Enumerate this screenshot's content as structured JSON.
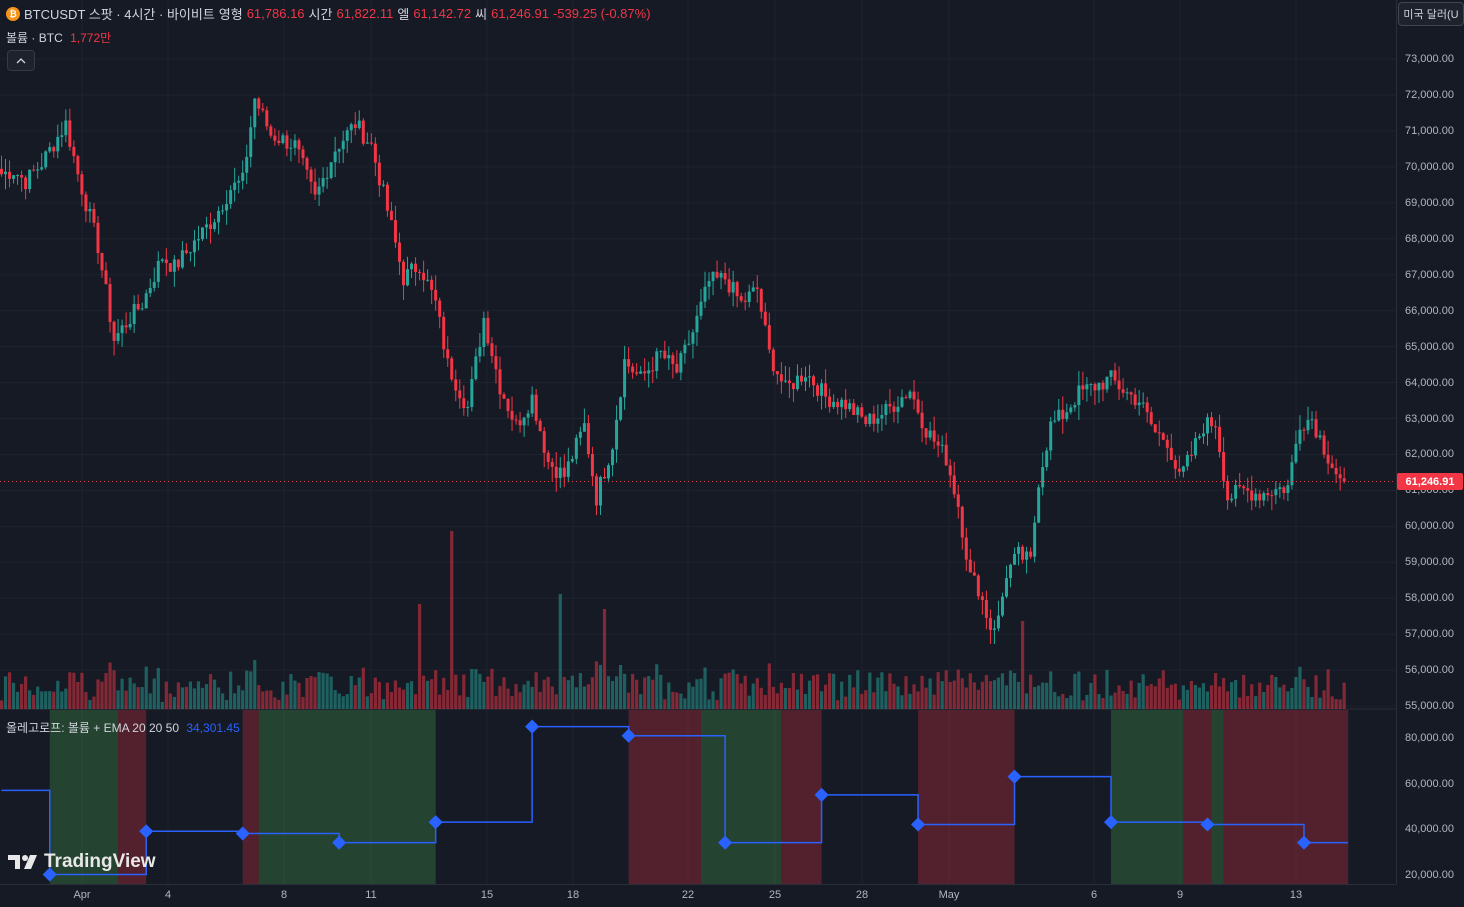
{
  "legend": {
    "symbol": "BTCUSDT 스팟 · 4시간 · 바이비트",
    "open_label": "영형",
    "open": "61,786.16",
    "high_label": "시간",
    "high": "61,822.11",
    "low_label": "엘",
    "low": "61,142.72",
    "close_label": "씨",
    "close": "61,246.91",
    "change": "-539.25 (-0.87%)"
  },
  "volume_legend": {
    "label": "볼륨 · BTC",
    "value": "1,772만"
  },
  "collapse_icon": "chevron-up-icon",
  "indicator_legend": {
    "label": "올레고로프: 볼륨 + EMA 20 20 50",
    "value": "34,301.45"
  },
  "currency_button": "미국 달러(U",
  "last_price": "61,246.91",
  "watermark": "TradingView",
  "colors": {
    "up": "#26a69a",
    "down": "#f23645",
    "line": "#2962ff",
    "bg": "#161a25"
  },
  "chart_data": {
    "type": "candlestick",
    "price_axis": [
      "73,000.00",
      "72,000.00",
      "71,000.00",
      "70,000.00",
      "69,000.00",
      "68,000.00",
      "67,000.00",
      "66,000.00",
      "65,000.00",
      "64,000.00",
      "63,000.00",
      "62,000.00",
      "61,000.00",
      "60,000.00",
      "59,000.00",
      "58,000.00",
      "57,000.00",
      "56,000.00",
      "55,000.00"
    ],
    "indicator_axis": [
      "80,000.00",
      "60,000.00",
      "40,000.00",
      "20,000.00"
    ],
    "time_axis": [
      "Apr",
      "4",
      "8",
      "11",
      "15",
      "18",
      "22",
      "25",
      "28",
      "May",
      "6",
      "9",
      "13"
    ],
    "ohlc_keypoints": [
      [
        0,
        69800
      ],
      [
        3,
        69900
      ],
      [
        6,
        69600
      ],
      [
        10,
        70100
      ],
      [
        16,
        71200
      ],
      [
        19,
        69800
      ],
      [
        24,
        67800
      ],
      [
        28,
        65200
      ],
      [
        32,
        65800
      ],
      [
        35,
        66200
      ],
      [
        40,
        67500
      ],
      [
        43,
        67200
      ],
      [
        48,
        67900
      ],
      [
        53,
        68600
      ],
      [
        57,
        69400
      ],
      [
        60,
        69600
      ],
      [
        63,
        71900
      ],
      [
        67,
        70900
      ],
      [
        73,
        70600
      ],
      [
        78,
        69100
      ],
      [
        83,
        70500
      ],
      [
        88,
        71200
      ],
      [
        92,
        70600
      ],
      [
        96,
        68800
      ],
      [
        100,
        66900
      ],
      [
        104,
        67300
      ],
      [
        108,
        66200
      ],
      [
        111,
        64500
      ],
      [
        116,
        63300
      ],
      [
        120,
        65800
      ],
      [
        124,
        63900
      ],
      [
        128,
        62800
      ],
      [
        132,
        63600
      ],
      [
        136,
        61800
      ],
      [
        140,
        61400
      ],
      [
        145,
        62800
      ],
      [
        148,
        60800
      ],
      [
        152,
        62300
      ],
      [
        155,
        64600
      ],
      [
        159,
        64100
      ],
      [
        164,
        64800
      ],
      [
        168,
        64300
      ],
      [
        172,
        65400
      ],
      [
        176,
        66800
      ],
      [
        180,
        66900
      ],
      [
        184,
        66200
      ],
      [
        188,
        66600
      ],
      [
        191,
        64800
      ],
      [
        195,
        63800
      ],
      [
        200,
        64300
      ],
      [
        205,
        63600
      ],
      [
        210,
        63400
      ],
      [
        215,
        62900
      ],
      [
        220,
        63200
      ],
      [
        226,
        63800
      ],
      [
        230,
        62700
      ],
      [
        235,
        61900
      ],
      [
        238,
        60600
      ],
      [
        241,
        58600
      ],
      [
        243,
        58300
      ],
      [
        246,
        57200
      ],
      [
        248,
        57400
      ],
      [
        250,
        58700
      ],
      [
        253,
        59200
      ],
      [
        256,
        59000
      ],
      [
        258,
        61300
      ],
      [
        261,
        62800
      ],
      [
        264,
        63100
      ],
      [
        268,
        63700
      ],
      [
        272,
        63900
      ],
      [
        276,
        64100
      ],
      [
        280,
        63700
      ],
      [
        283,
        63500
      ],
      [
        287,
        62600
      ],
      [
        290,
        62400
      ],
      [
        293,
        61300
      ],
      [
        296,
        62000
      ],
      [
        299,
        62800
      ],
      [
        302,
        62900
      ],
      [
        305,
        60800
      ],
      [
        309,
        61000
      ],
      [
        313,
        60900
      ],
      [
        316,
        61000
      ],
      [
        320,
        61100
      ],
      [
        323,
        62900
      ],
      [
        326,
        63000
      ],
      [
        329,
        62200
      ],
      [
        333,
        61246
      ]
    ],
    "volume_value_label": "1,772만",
    "ema_steps": [
      {
        "x": 0,
        "y": 57000
      },
      {
        "x": 12,
        "y": 20000
      },
      {
        "x": 36,
        "y": 39000
      },
      {
        "x": 60,
        "y": 38000
      },
      {
        "x": 84,
        "y": 34000
      },
      {
        "x": 108,
        "y": 43000
      },
      {
        "x": 132,
        "y": 85000
      },
      {
        "x": 156,
        "y": 81000
      },
      {
        "x": 180,
        "y": 34000
      },
      {
        "x": 204,
        "y": 55000
      },
      {
        "x": 228,
        "y": 42000
      },
      {
        "x": 252,
        "y": 63000
      },
      {
        "x": 276,
        "y": 43000
      },
      {
        "x": 300,
        "y": 42000
      },
      {
        "x": 324,
        "y": 34000
      }
    ],
    "regime_bands": [
      {
        "from": 12,
        "to": 29,
        "state": "up"
      },
      {
        "from": 29,
        "to": 36,
        "state": "down"
      },
      {
        "from": 60,
        "to": 64,
        "state": "down"
      },
      {
        "from": 64,
        "to": 108,
        "state": "up"
      },
      {
        "from": 156,
        "to": 174,
        "state": "down"
      },
      {
        "from": 174,
        "to": 194,
        "state": "up"
      },
      {
        "from": 194,
        "to": 204,
        "state": "down"
      },
      {
        "from": 228,
        "to": 252,
        "state": "down"
      },
      {
        "from": 276,
        "to": 294,
        "state": "up"
      },
      {
        "from": 294,
        "to": 301,
        "state": "down"
      },
      {
        "from": 301,
        "to": 304,
        "state": "up"
      },
      {
        "from": 304,
        "to": 335,
        "state": "down"
      }
    ],
    "last_price": 61246.91
  }
}
